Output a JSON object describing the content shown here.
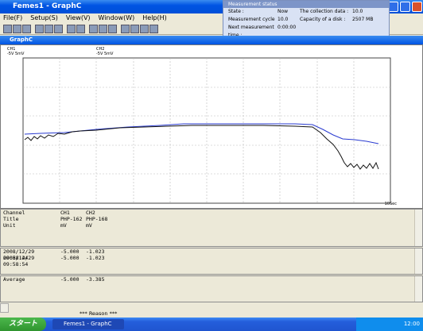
{
  "window": {
    "title": "Femes1 - GraphC",
    "menu": [
      "File(F)",
      "Setup(S)",
      "View(V)",
      "Window(W)",
      "Help(H)"
    ]
  },
  "status_popup": {
    "title": "Measurement status",
    "rows": [
      [
        "State :",
        "Now",
        "The collection data :",
        "10.0"
      ],
      [
        "Measurement cycle :",
        "10.0",
        "Capacity of a disk :",
        "2507 MB"
      ],
      [
        "Next measurement time :",
        "0:00:00"
      ]
    ]
  },
  "graph_window": {
    "title": "GraphC",
    "legend": [
      [
        "CH1",
        "-5V 5mV"
      ],
      [
        "CH2",
        "-5V 5mV"
      ]
    ],
    "x_unit": "10Sec"
  },
  "info_table": {
    "rows": [
      [
        "Channel",
        "CH1",
        "CH2"
      ],
      [
        "Title",
        "PHP-162",
        "PHP-168"
      ],
      [
        "Unit",
        "mV",
        "mV"
      ]
    ]
  },
  "data_table": {
    "rows": [
      [
        "2008/12/29 09:58:44",
        "-5.000",
        "-1.023"
      ],
      [
        "2008/12/29 09:58:54",
        "-5.000",
        "-1.023"
      ]
    ]
  },
  "average_table": {
    "rows": [
      [
        "Average",
        "-5.000",
        "-3.385"
      ]
    ]
  },
  "status_bar": {
    "text": "*** Reason ***"
  },
  "taskbar": {
    "start": "スタート",
    "task": "Femes1 - GraphC",
    "clock": "12:00"
  }
}
